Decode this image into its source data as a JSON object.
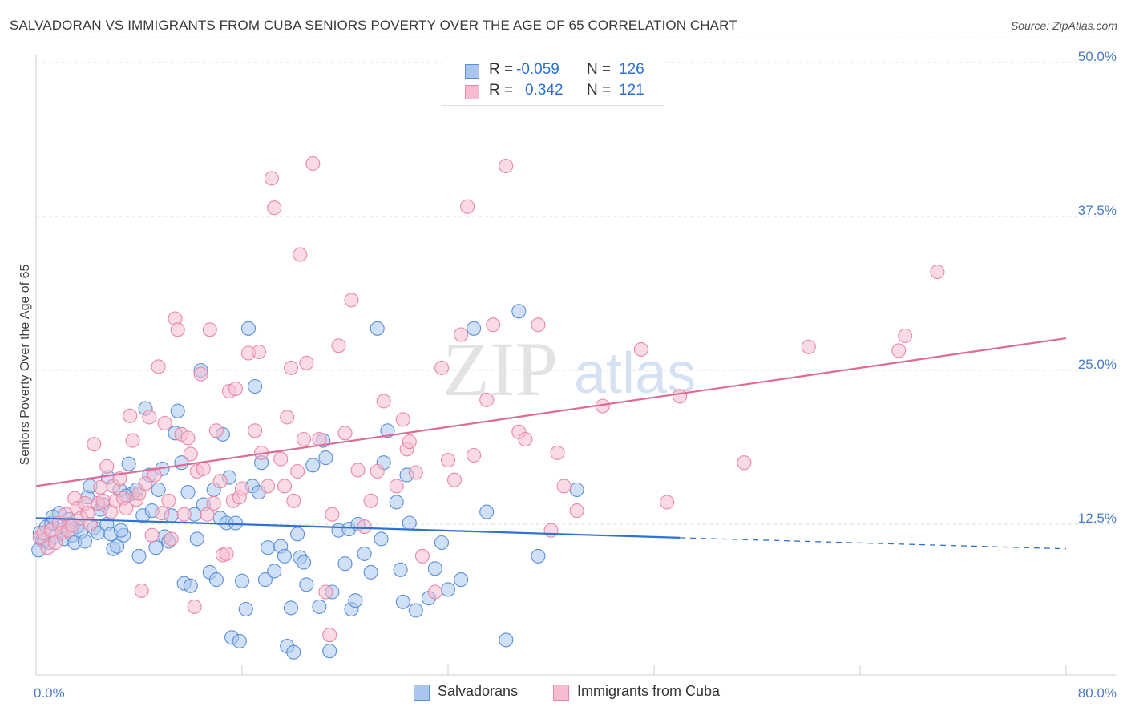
{
  "title": "SALVADORAN VS IMMIGRANTS FROM CUBA SENIORS POVERTY OVER THE AGE OF 65 CORRELATION CHART",
  "source": "Source: ZipAtlas.com",
  "watermark": {
    "zip": "ZIP",
    "atlas": "atlas"
  },
  "legend": {
    "rows": [
      {
        "r_label": "R =",
        "r_value": "-0.059",
        "n_label": "N =",
        "n_value": "126"
      },
      {
        "r_label": "R =",
        "r_value": "0.342",
        "n_label": "N =",
        "n_value": "121"
      }
    ]
  },
  "bottom_legend": {
    "series1": "Salvadorans",
    "series2": "Immigrants from Cuba"
  },
  "colors": {
    "blue_fill": "#a9c6ee",
    "blue_stroke": "#5b8fd8",
    "blue_line": "#2f72d1",
    "pink_fill": "#f6bccd",
    "pink_stroke": "#e888a8",
    "pink_line": "#e06a95",
    "tick_text": "#4a7cc9"
  },
  "chart_data": {
    "type": "scatter",
    "title": "SALVADORAN VS IMMIGRANTS FROM CUBA SENIORS POVERTY OVER THE AGE OF 65 CORRELATION CHART",
    "xlabel": "",
    "ylabel": "Seniors Poverty Over the Age of 65",
    "xlim": [
      0,
      80
    ],
    "ylim": [
      0,
      52
    ],
    "x_tick_labels": [
      "0.0%",
      "80.0%"
    ],
    "y_ticks": [
      12.5,
      25.0,
      37.5,
      50.0
    ],
    "y_tick_labels": [
      "12.5%",
      "25.0%",
      "37.5%",
      "50.0%"
    ],
    "grid": "horizontal dashed",
    "legend_position": "top-center",
    "series": [
      {
        "name": "Salvadorans",
        "R": -0.059,
        "N": 126,
        "trend": {
          "x": [
            0,
            50
          ],
          "y": [
            13.0,
            11.4
          ],
          "dashed_to_x": 80,
          "dashed_end_y": 10.5
        },
        "points": [
          [
            0.3,
            11.8
          ],
          [
            0.5,
            11.2
          ],
          [
            0.8,
            12.3
          ],
          [
            1.0,
            11.0
          ],
          [
            1.2,
            12.6
          ],
          [
            1.5,
            11.5
          ],
          [
            1.8,
            13.4
          ],
          [
            2.0,
            12.0
          ],
          [
            2.2,
            11.3
          ],
          [
            2.5,
            12.9
          ],
          [
            2.8,
            11.6
          ],
          [
            3.0,
            11.0
          ],
          [
            3.2,
            12.3
          ],
          [
            3.5,
            11.9
          ],
          [
            3.8,
            11.1
          ],
          [
            4.0,
            14.7
          ],
          [
            4.2,
            15.6
          ],
          [
            4.5,
            12.2
          ],
          [
            4.8,
            11.8
          ],
          [
            5.0,
            13.7
          ],
          [
            5.2,
            14.1
          ],
          [
            5.5,
            12.5
          ],
          [
            5.8,
            11.7
          ],
          [
            6.0,
            10.5
          ],
          [
            6.3,
            10.7
          ],
          [
            6.5,
            15.3
          ],
          [
            6.8,
            11.6
          ],
          [
            7.0,
            14.8
          ],
          [
            7.2,
            17.4
          ],
          [
            7.5,
            15.0
          ],
          [
            7.8,
            15.3
          ],
          [
            8.0,
            9.9
          ],
          [
            8.3,
            13.2
          ],
          [
            8.5,
            21.9
          ],
          [
            8.8,
            16.5
          ],
          [
            9.0,
            13.6
          ],
          [
            9.3,
            10.6
          ],
          [
            9.5,
            15.3
          ],
          [
            9.8,
            17.0
          ],
          [
            10.0,
            11.5
          ],
          [
            10.3,
            11.1
          ],
          [
            10.5,
            13.2
          ],
          [
            10.8,
            19.9
          ],
          [
            11.0,
            21.7
          ],
          [
            11.3,
            17.5
          ],
          [
            11.5,
            7.7
          ],
          [
            11.8,
            15.1
          ],
          [
            12.0,
            7.5
          ],
          [
            12.3,
            13.3
          ],
          [
            12.5,
            11.3
          ],
          [
            12.8,
            25.0
          ],
          [
            13.0,
            14.1
          ],
          [
            13.5,
            8.6
          ],
          [
            13.8,
            15.3
          ],
          [
            14.0,
            8.0
          ],
          [
            14.3,
            13.0
          ],
          [
            14.5,
            19.8
          ],
          [
            14.8,
            12.6
          ],
          [
            15.0,
            16.3
          ],
          [
            15.2,
            3.3
          ],
          [
            15.5,
            12.6
          ],
          [
            15.8,
            3.0
          ],
          [
            16.0,
            7.9
          ],
          [
            16.3,
            5.6
          ],
          [
            16.5,
            28.4
          ],
          [
            16.8,
            15.6
          ],
          [
            17.0,
            23.7
          ],
          [
            17.3,
            15.1
          ],
          [
            17.5,
            17.5
          ],
          [
            17.8,
            8.0
          ],
          [
            18.0,
            10.6
          ],
          [
            18.5,
            8.7
          ],
          [
            19.0,
            10.7
          ],
          [
            19.3,
            9.9
          ],
          [
            19.5,
            2.6
          ],
          [
            19.8,
            5.7
          ],
          [
            20.0,
            2.1
          ],
          [
            20.3,
            11.7
          ],
          [
            20.5,
            9.8
          ],
          [
            20.8,
            9.4
          ],
          [
            21.0,
            7.6
          ],
          [
            21.5,
            17.3
          ],
          [
            22.0,
            5.8
          ],
          [
            22.3,
            19.3
          ],
          [
            22.5,
            17.9
          ],
          [
            22.8,
            2.2
          ],
          [
            23.0,
            7.0
          ],
          [
            23.5,
            12.0
          ],
          [
            24.0,
            9.3
          ],
          [
            24.3,
            12.1
          ],
          [
            24.5,
            5.6
          ],
          [
            24.8,
            6.3
          ],
          [
            25.0,
            12.5
          ],
          [
            25.5,
            10.1
          ],
          [
            26.0,
            8.6
          ],
          [
            26.5,
            28.4
          ],
          [
            26.8,
            11.3
          ],
          [
            27.0,
            17.5
          ],
          [
            27.3,
            20.1
          ],
          [
            28.0,
            14.3
          ],
          [
            28.3,
            8.8
          ],
          [
            28.5,
            6.2
          ],
          [
            28.8,
            16.5
          ],
          [
            29.0,
            12.6
          ],
          [
            29.5,
            5.5
          ],
          [
            30.5,
            6.5
          ],
          [
            31.0,
            8.9
          ],
          [
            31.5,
            11.0
          ],
          [
            32.0,
            7.2
          ],
          [
            33.0,
            8.0
          ],
          [
            34.0,
            28.4
          ],
          [
            35.0,
            13.5
          ],
          [
            36.5,
            3.1
          ],
          [
            37.5,
            29.8
          ],
          [
            39.0,
            9.9
          ],
          [
            42.0,
            15.3
          ],
          [
            0.6,
            11.1
          ],
          [
            1.3,
            13.1
          ],
          [
            0.2,
            10.4
          ],
          [
            2.6,
            12.5
          ],
          [
            5.6,
            16.3
          ],
          [
            6.6,
            12.0
          ]
        ]
      },
      {
        "name": "Immigrants from Cuba",
        "R": 0.342,
        "N": 121,
        "trend": {
          "x": [
            0,
            80
          ],
          "y": [
            15.6,
            27.6
          ]
        },
        "points": [
          [
            0.3,
            11.4
          ],
          [
            0.6,
            11.8
          ],
          [
            0.9,
            10.6
          ],
          [
            1.2,
            12.0
          ],
          [
            1.5,
            11.0
          ],
          [
            1.8,
            12.6
          ],
          [
            2.0,
            11.8
          ],
          [
            2.3,
            13.3
          ],
          [
            2.5,
            12.0
          ],
          [
            2.8,
            12.4
          ],
          [
            3.0,
            14.6
          ],
          [
            3.2,
            13.8
          ],
          [
            3.5,
            13.0
          ],
          [
            3.8,
            14.2
          ],
          [
            4.0,
            13.4
          ],
          [
            4.2,
            12.5
          ],
          [
            4.5,
            19.0
          ],
          [
            4.8,
            14.2
          ],
          [
            5.0,
            15.5
          ],
          [
            5.2,
            14.4
          ],
          [
            5.5,
            17.2
          ],
          [
            5.8,
            13.5
          ],
          [
            6.0,
            15.6
          ],
          [
            6.2,
            14.4
          ],
          [
            6.5,
            16.2
          ],
          [
            6.8,
            14.6
          ],
          [
            7.0,
            13.8
          ],
          [
            7.3,
            21.3
          ],
          [
            7.5,
            19.3
          ],
          [
            7.8,
            14.5
          ],
          [
            8.0,
            15.0
          ],
          [
            8.2,
            7.1
          ],
          [
            8.5,
            15.8
          ],
          [
            8.8,
            21.2
          ],
          [
            9.0,
            11.6
          ],
          [
            9.2,
            16.5
          ],
          [
            9.5,
            25.3
          ],
          [
            9.8,
            13.4
          ],
          [
            10.0,
            20.7
          ],
          [
            10.3,
            14.4
          ],
          [
            10.5,
            11.3
          ],
          [
            10.8,
            29.2
          ],
          [
            11.0,
            28.3
          ],
          [
            11.3,
            19.8
          ],
          [
            11.5,
            13.3
          ],
          [
            11.8,
            19.5
          ],
          [
            12.0,
            18.2
          ],
          [
            12.3,
            5.8
          ],
          [
            12.5,
            16.8
          ],
          [
            12.8,
            24.7
          ],
          [
            13.0,
            17.0
          ],
          [
            13.3,
            13.3
          ],
          [
            13.5,
            28.3
          ],
          [
            13.8,
            14.2
          ],
          [
            14.0,
            20.1
          ],
          [
            14.3,
            16.0
          ],
          [
            14.5,
            10.0
          ],
          [
            14.8,
            10.1
          ],
          [
            15.0,
            23.3
          ],
          [
            15.3,
            14.4
          ],
          [
            15.5,
            23.5
          ],
          [
            15.8,
            14.7
          ],
          [
            16.0,
            15.4
          ],
          [
            16.5,
            26.4
          ],
          [
            17.0,
            20.1
          ],
          [
            17.3,
            26.5
          ],
          [
            17.5,
            18.3
          ],
          [
            18.0,
            15.6
          ],
          [
            18.3,
            40.6
          ],
          [
            18.5,
            38.2
          ],
          [
            19.0,
            17.8
          ],
          [
            19.3,
            15.6
          ],
          [
            19.5,
            21.2
          ],
          [
            19.8,
            25.2
          ],
          [
            20.0,
            14.4
          ],
          [
            20.3,
            16.8
          ],
          [
            20.5,
            34.4
          ],
          [
            20.8,
            19.4
          ],
          [
            21.0,
            25.6
          ],
          [
            21.5,
            41.8
          ],
          [
            22.0,
            19.4
          ],
          [
            22.5,
            7.0
          ],
          [
            22.8,
            3.5
          ],
          [
            23.0,
            13.3
          ],
          [
            23.5,
            27.0
          ],
          [
            24.0,
            19.9
          ],
          [
            24.5,
            30.7
          ],
          [
            25.0,
            16.9
          ],
          [
            25.5,
            12.3
          ],
          [
            26.0,
            14.4
          ],
          [
            26.5,
            16.8
          ],
          [
            27.0,
            22.5
          ],
          [
            28.0,
            15.6
          ],
          [
            28.5,
            21.0
          ],
          [
            28.8,
            18.6
          ],
          [
            29.0,
            19.2
          ],
          [
            29.5,
            16.7
          ],
          [
            30.0,
            9.9
          ],
          [
            31.0,
            7.0
          ],
          [
            31.5,
            25.2
          ],
          [
            32.0,
            17.7
          ],
          [
            32.5,
            16.1
          ],
          [
            33.0,
            27.9
          ],
          [
            33.5,
            38.3
          ],
          [
            34.0,
            18.1
          ],
          [
            35.0,
            22.6
          ],
          [
            35.5,
            28.7
          ],
          [
            36.5,
            41.6
          ],
          [
            37.5,
            20.0
          ],
          [
            38.0,
            19.4
          ],
          [
            39.0,
            28.7
          ],
          [
            40.0,
            12.0
          ],
          [
            41.0,
            15.6
          ],
          [
            42.0,
            13.6
          ],
          [
            44.0,
            22.1
          ],
          [
            47.0,
            26.7
          ],
          [
            49.0,
            14.3
          ],
          [
            50.0,
            22.9
          ],
          [
            55.0,
            17.5
          ],
          [
            60.0,
            26.9
          ],
          [
            67.0,
            26.6
          ],
          [
            67.5,
            27.8
          ],
          [
            70.0,
            33.0
          ],
          [
            40.5,
            18.3
          ]
        ]
      }
    ]
  }
}
